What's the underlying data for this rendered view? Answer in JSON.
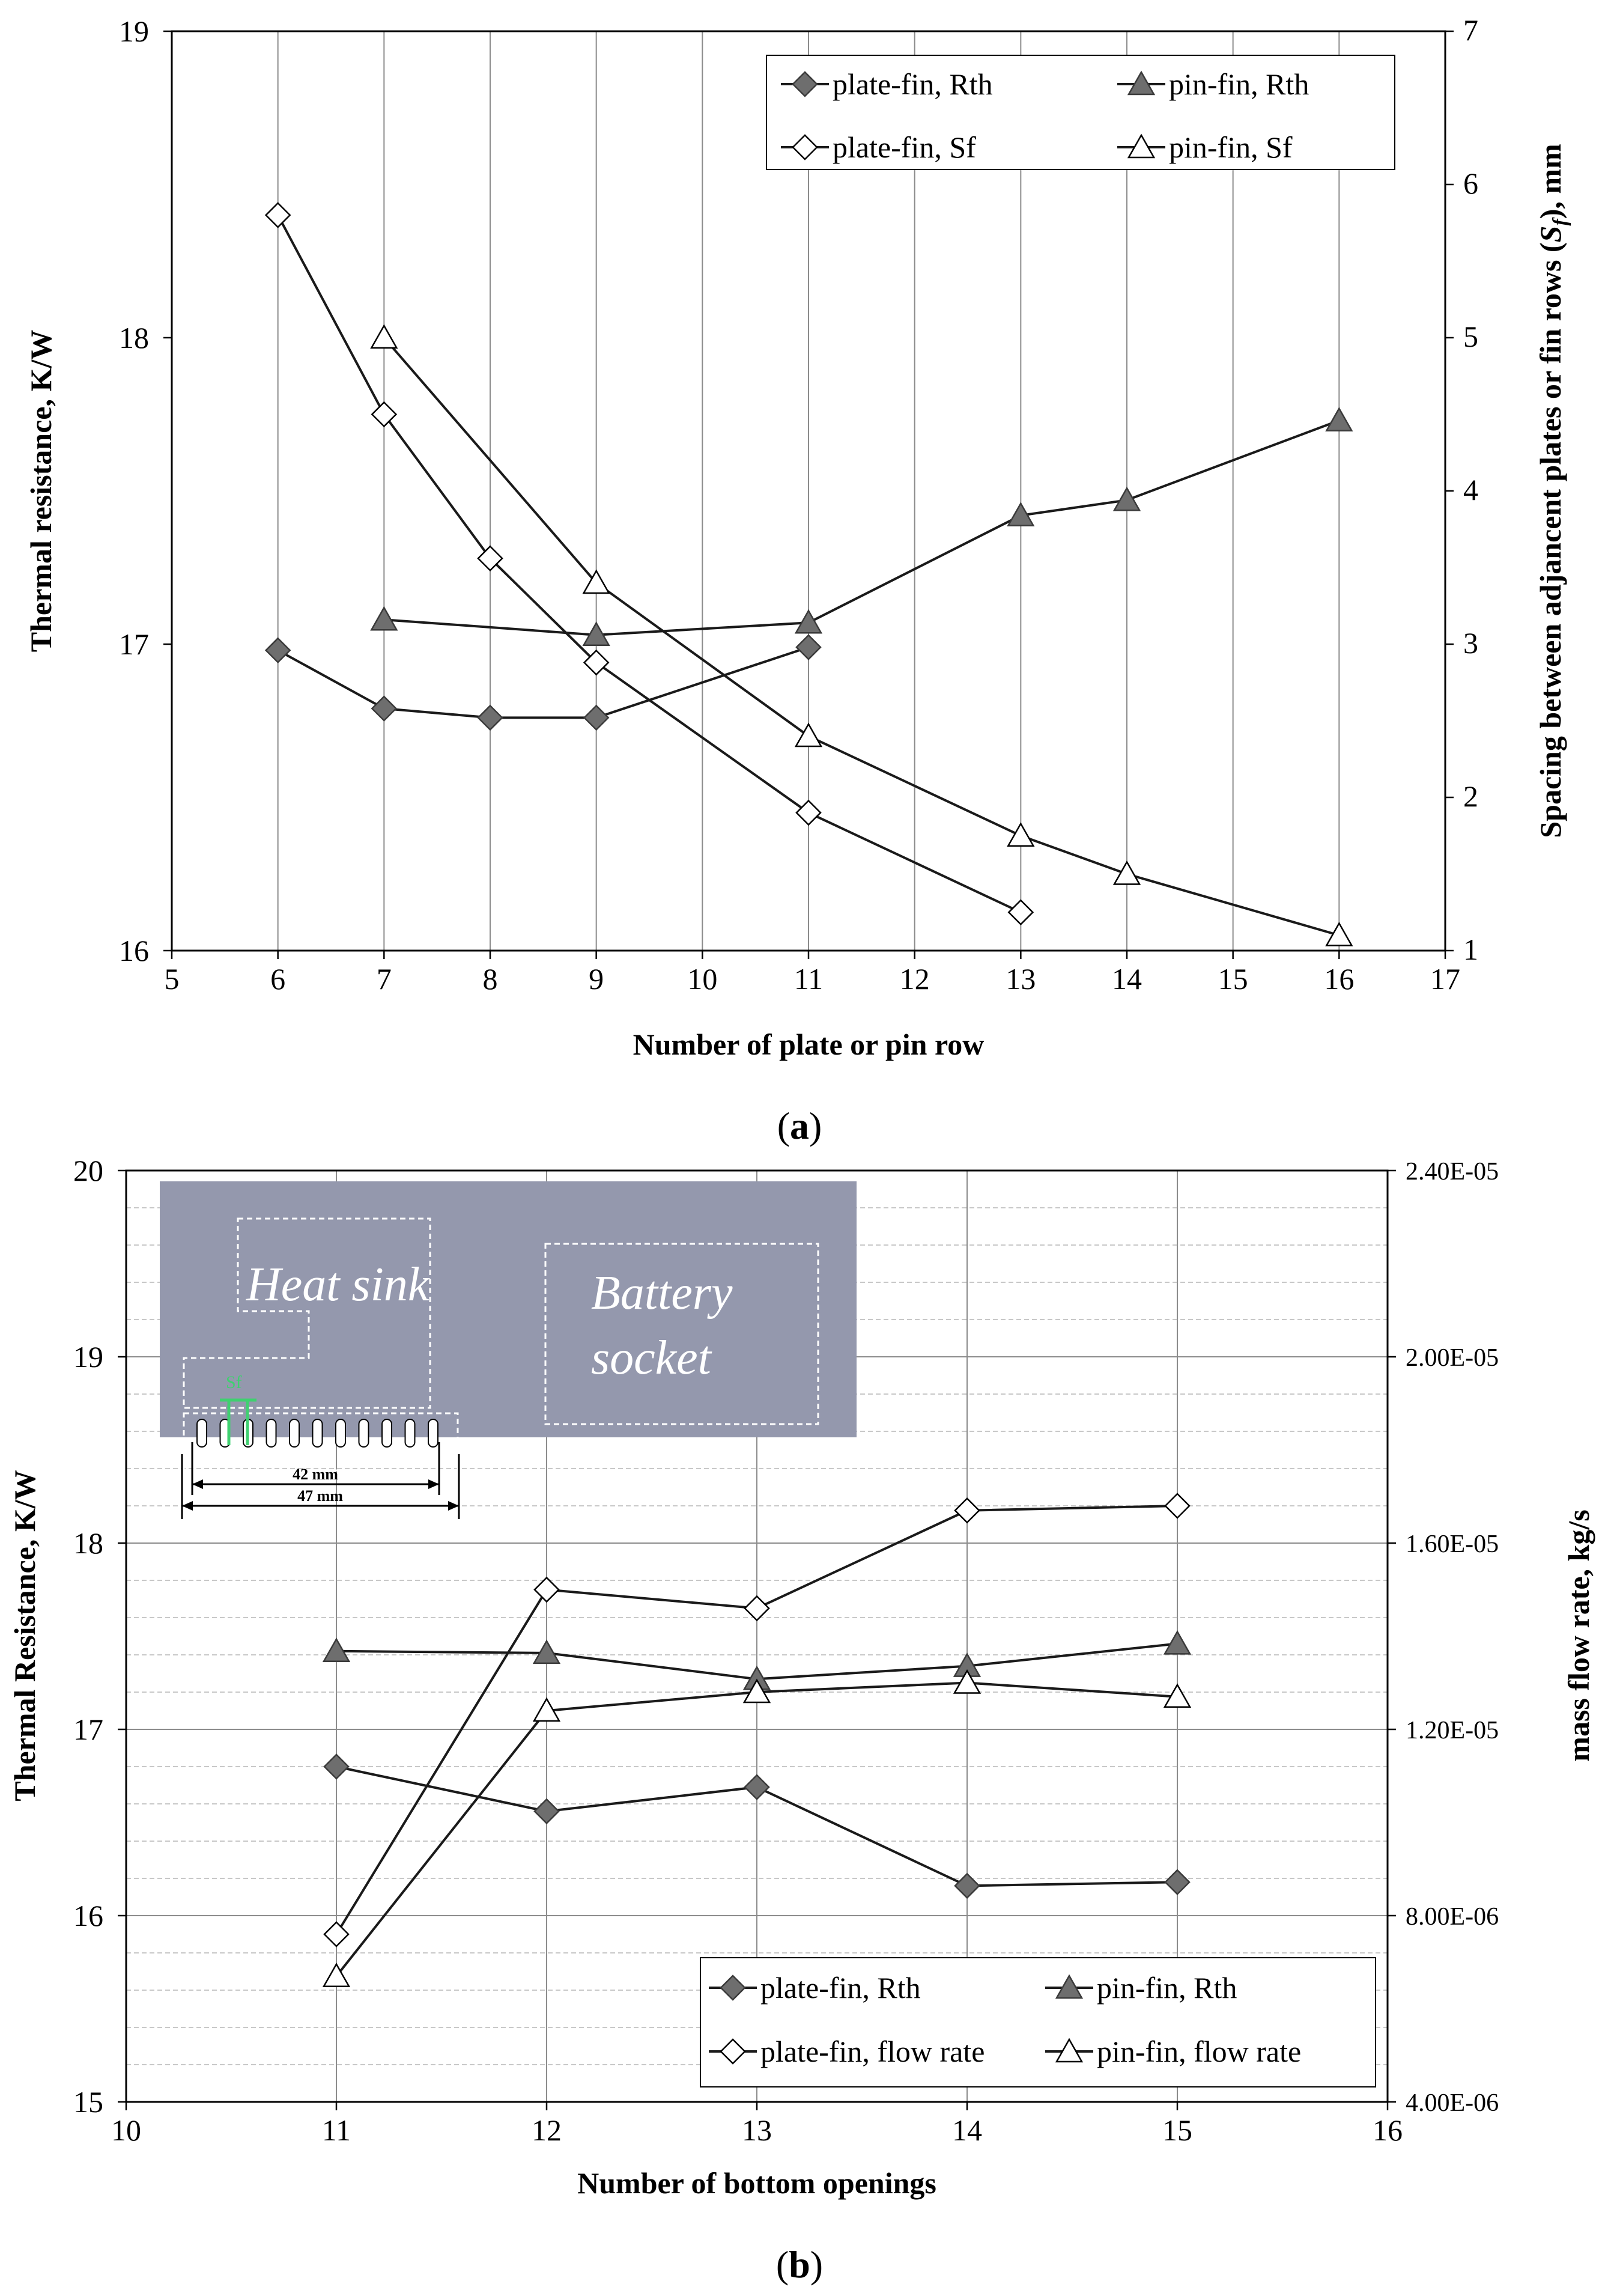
{
  "chart_data": [
    {
      "type": "line",
      "panel_label": "a",
      "xlabel": "Number of plate or pin row",
      "ylabel": "Thermal resistance, K/W",
      "y2label_parts": [
        "Spacing between adjancent plates or fin rows (",
        "S",
        "f",
        "), mm"
      ],
      "xlim": [
        5,
        17
      ],
      "ylim": [
        16,
        19
      ],
      "y2lim": [
        1,
        7
      ],
      "xticks": [
        "5",
        "6",
        "7",
        "8",
        "9",
        "10",
        "11",
        "12",
        "13",
        "14",
        "15",
        "16",
        "17"
      ],
      "yticks": [
        "16",
        "17",
        "18",
        "19"
      ],
      "y2ticks": [
        "1",
        "2",
        "3",
        "4",
        "5",
        "6",
        "7"
      ],
      "grid": "vertical",
      "legend_position": "top-right",
      "series": [
        {
          "name": "plate-fin, Rth",
          "axis": "left",
          "marker": "diamond-filled",
          "x": [
            6,
            7,
            8,
            9,
            11
          ],
          "values": [
            16.98,
            16.79,
            16.76,
            16.76,
            16.99
          ]
        },
        {
          "name": "pin-fin, Rth",
          "axis": "left",
          "marker": "triangle-filled",
          "x": [
            7,
            9,
            11,
            13,
            14,
            16
          ],
          "values": [
            17.08,
            17.03,
            17.07,
            17.42,
            17.47,
            17.73
          ]
        },
        {
          "name": "plate-fin, Sf",
          "axis": "right",
          "marker": "diamond-open",
          "x": [
            6,
            7,
            8,
            9,
            11,
            13
          ],
          "values": [
            5.8,
            4.5,
            3.56,
            2.88,
            1.9,
            1.25
          ]
        },
        {
          "name": "pin-fin, Sf",
          "axis": "right",
          "marker": "triangle-open",
          "x": [
            7,
            9,
            11,
            13,
            14,
            16
          ],
          "values": [
            5.0,
            3.4,
            2.4,
            1.75,
            1.5,
            1.1
          ]
        }
      ]
    },
    {
      "type": "line",
      "panel_label": "b",
      "xlabel": "Number  of bottom openings",
      "ylabel": "Thermal  Resistance, K/W",
      "y2label": "mass flow rate, kg/s",
      "xlim": [
        10,
        16
      ],
      "ylim": [
        15,
        20
      ],
      "y2lim": [
        4e-06,
        2.4e-05
      ],
      "xticks": [
        "10",
        "11",
        "12",
        "13",
        "14",
        "15",
        "16"
      ],
      "yticks": [
        "15",
        "16",
        "17",
        "18",
        "19",
        "20"
      ],
      "y2ticks": [
        "4.00E-06",
        "8.00E-06",
        "1.20E-05",
        "1.60E-05",
        "2.00E-05",
        "2.40E-05"
      ],
      "grid": "vertical and dashed horizontal",
      "legend_position": "bottom-right",
      "series": [
        {
          "name": "plate-fin, Rth",
          "axis": "left",
          "marker": "diamond-filled",
          "x": [
            11,
            12,
            13,
            14,
            15
          ],
          "values": [
            16.8,
            16.56,
            16.69,
            16.16,
            16.18
          ]
        },
        {
          "name": "pin-fin, Rth",
          "axis": "left",
          "marker": "triangle-filled",
          "x": [
            11,
            12,
            13,
            14,
            15
          ],
          "values": [
            17.42,
            17.41,
            17.27,
            17.34,
            17.46
          ]
        },
        {
          "name": "plate-fin, flow rate",
          "axis": "right",
          "marker": "diamond-open",
          "x": [
            11,
            12,
            13,
            14,
            15
          ],
          "values": [
            7.6e-06,
            1.5e-05,
            1.46e-05,
            1.67e-05,
            1.68e-05
          ]
        },
        {
          "name": "pin-fin, flow rate",
          "axis": "right",
          "marker": "triangle-open",
          "x": [
            11,
            12,
            13,
            14,
            15
          ],
          "values": [
            6.7e-06,
            1.24e-05,
            1.28e-05,
            1.3e-05,
            1.27e-05
          ]
        }
      ],
      "inset": {
        "heat_sink_label": "Heat sink",
        "battery_label": "Battery socket",
        "battery_label_lines": [
          "Battery",
          "socket"
        ],
        "dim_inner": "42 mm",
        "dim_outer": "47 mm",
        "sf_label": "Sf",
        "background_color": "#9498ad",
        "accent_color": "#3fd070"
      }
    }
  ]
}
